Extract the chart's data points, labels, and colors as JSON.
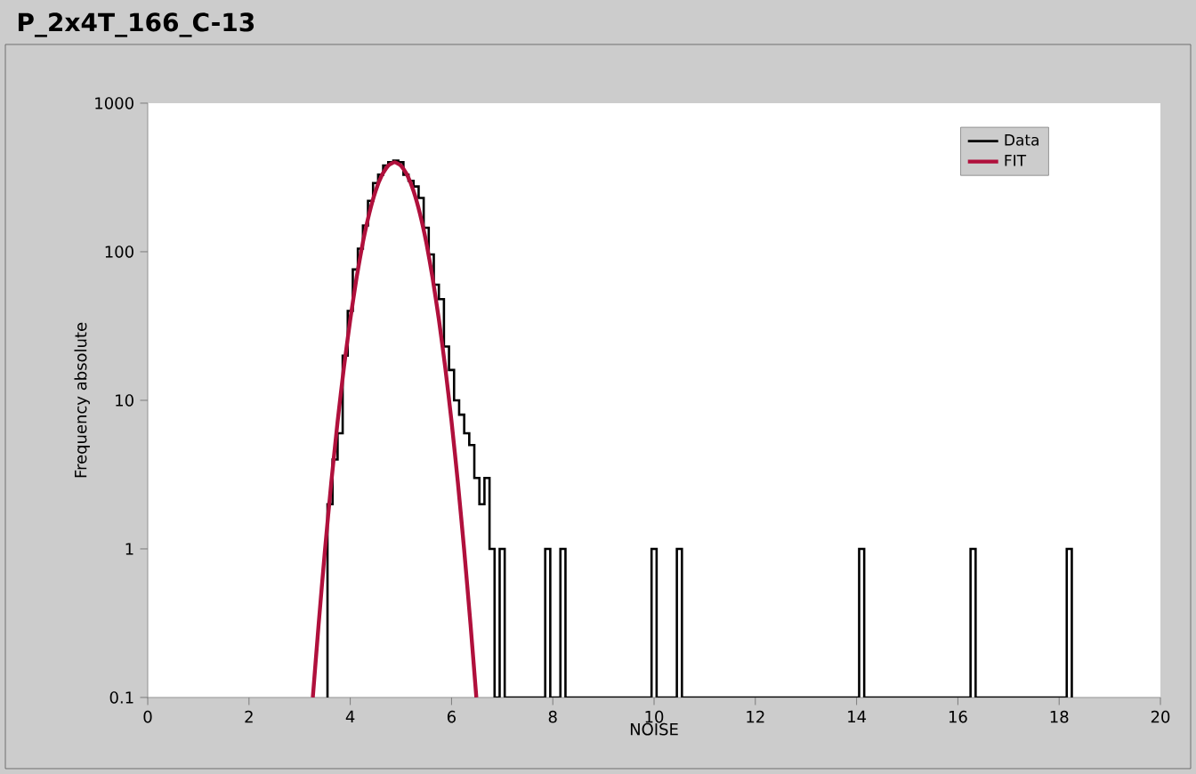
{
  "chart_data": {
    "type": "histogram",
    "title": "P_2x4T_166_C-13",
    "xlabel": "NOISE",
    "ylabel": "Frequency absolute",
    "bins": [
      3.55,
      3.65,
      3.75,
      3.85,
      3.95,
      4.05,
      4.15,
      4.25,
      4.35,
      4.45,
      4.55,
      4.65,
      4.75,
      4.85,
      4.95,
      5.05,
      5.15,
      5.25,
      5.35,
      5.45,
      5.55,
      5.65,
      5.75,
      5.85,
      5.95,
      6.05,
      6.15,
      6.25,
      6.35,
      6.45,
      6.55,
      6.65,
      6.75,
      6.85,
      6.95,
      7.05,
      7.15,
      7.25,
      7.35,
      7.45,
      7.55,
      7.65,
      7.75,
      7.85,
      7.95,
      8.05,
      8.15,
      8.25,
      8.35,
      8.45,
      8.55,
      8.65,
      8.75,
      8.85,
      8.95,
      9.05,
      9.15,
      9.25,
      9.35,
      9.45,
      9.55,
      9.65,
      9.75,
      9.85,
      9.95,
      10.05,
      10.15,
      10.25,
      10.35,
      10.45,
      10.55,
      10.65,
      10.75,
      10.85,
      10.95,
      11.05,
      11.15,
      11.25,
      11.35,
      11.45,
      11.55,
      11.65,
      11.75,
      11.85,
      11.95,
      12.05,
      12.15,
      12.25,
      12.35,
      12.45,
      12.55,
      12.65,
      12.75,
      12.85,
      12.95,
      13.05,
      13.15,
      13.25,
      13.35,
      13.45,
      13.55,
      13.65,
      13.75,
      13.85,
      13.95,
      14.05,
      14.15,
      14.25,
      14.35,
      14.45,
      14.55,
      14.65,
      14.75,
      14.85,
      14.95,
      15.05,
      15.15,
      15.25,
      15.35,
      15.45,
      15.55,
      15.65,
      15.75,
      15.85,
      15.95,
      16.05,
      16.15,
      16.25,
      16.35,
      16.45,
      16.55,
      16.65,
      16.75,
      16.85,
      16.95,
      17.05,
      17.15,
      17.25,
      17.35,
      17.45,
      17.55,
      17.65,
      17.75,
      17.85,
      17.95,
      18.05,
      18.15,
      18.25
    ],
    "series": [
      {
        "name": "Data",
        "color": "#000000",
        "values": [
          2,
          4,
          6,
          20,
          40,
          76,
          105,
          150,
          220,
          290,
          330,
          380,
          400,
          410,
          400,
          330,
          300,
          275,
          230,
          145,
          96,
          60,
          48,
          23,
          16,
          10,
          8,
          6,
          5,
          3,
          2,
          3,
          1,
          null,
          1,
          null,
          null,
          null,
          null,
          null,
          null,
          null,
          null,
          1,
          null,
          null,
          1,
          null,
          null,
          null,
          null,
          null,
          null,
          null,
          null,
          null,
          null,
          null,
          null,
          null,
          null,
          null,
          null,
          null,
          1,
          null,
          null,
          null,
          null,
          1,
          null,
          null,
          null,
          null,
          null,
          null,
          null,
          null,
          null,
          null,
          null,
          null,
          null,
          null,
          null,
          null,
          null,
          null,
          null,
          null,
          null,
          null,
          null,
          null,
          null,
          null,
          null,
          null,
          null,
          null,
          null,
          null,
          null,
          null,
          null,
          1,
          null,
          null,
          null,
          null,
          null,
          null,
          null,
          null,
          null,
          null,
          null,
          null,
          null,
          null,
          null,
          null,
          null,
          null,
          null,
          null,
          null,
          1,
          null,
          null,
          null,
          null,
          null,
          null,
          null,
          null,
          null,
          null,
          null,
          null,
          null,
          null,
          null,
          null,
          null,
          null,
          1
        ]
      },
      {
        "name": "FIT",
        "type": "line",
        "color": "#b0103c",
        "x": [
          3.26,
          3.375,
          3.5,
          3.625,
          3.75,
          3.875,
          4,
          4.125,
          4.25,
          4.375,
          4.5,
          4.625,
          4.75,
          4.875,
          5,
          5.125,
          5.25,
          5.375,
          5.5,
          5.625,
          5.75,
          5.875,
          6,
          6.125,
          6.25,
          6.375,
          6.49
        ],
        "values": [
          0.1,
          0.31,
          0.98,
          2.8,
          7.2,
          16.7,
          35,
          67,
          116,
          181,
          256,
          328,
          380,
          400,
          380,
          328,
          256,
          181,
          116,
          67,
          35,
          16.7,
          7.2,
          2.8,
          0.98,
          0.31,
          0.1
        ]
      }
    ],
    "xlim": [
      0,
      20
    ],
    "xticks": [
      0,
      2,
      4,
      6,
      8,
      10,
      12,
      14,
      16,
      18,
      20
    ],
    "ylim": [
      0.1,
      1000
    ],
    "yticks": [
      0.1,
      1,
      10,
      100,
      1000
    ],
    "log": "y",
    "legend": "top right"
  }
}
